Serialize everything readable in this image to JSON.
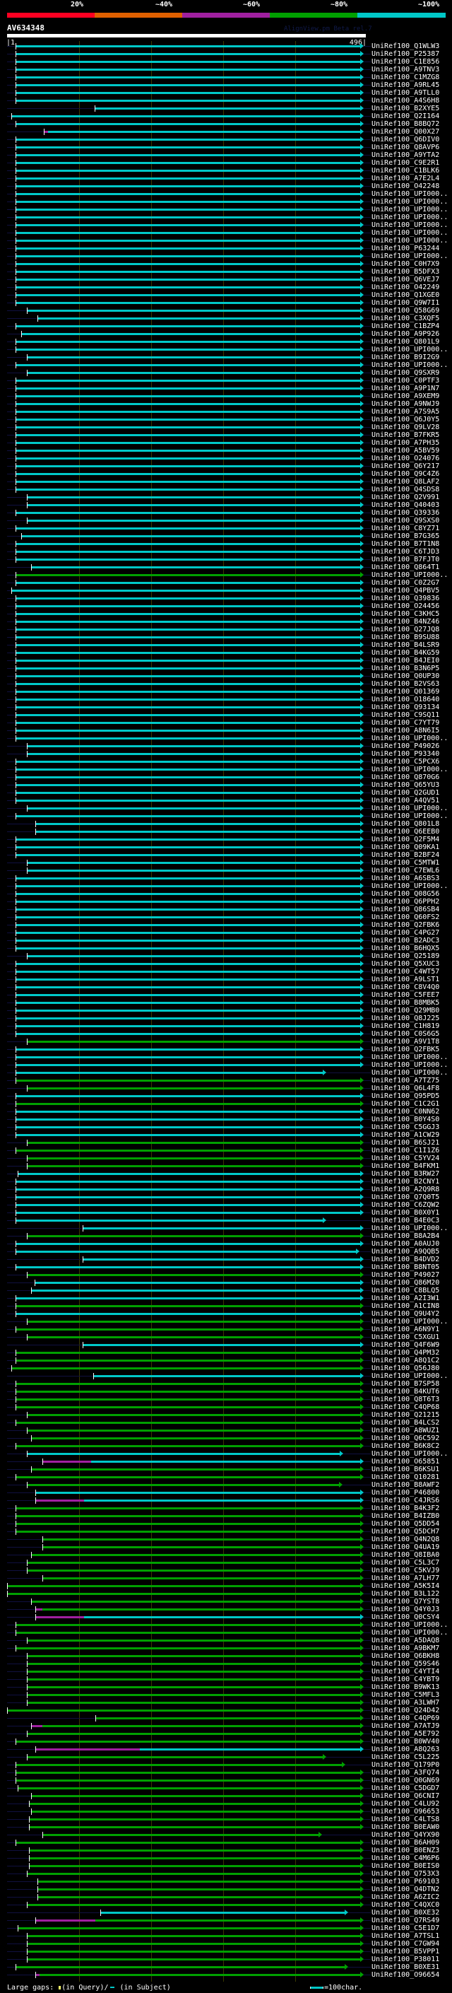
{
  "header": {
    "scale_labels": [
      "20%",
      "~40%",
      "~60%",
      "~80%",
      "~100%"
    ],
    "scale_colors": [
      "#ff0022",
      "#e06000",
      "#a020a0",
      "#00a000",
      "#00c8c8"
    ],
    "query_name": "AV634348",
    "credit": "AlignView.pm Beta rel.7",
    "query_start": "|1",
    "query_end": "496|"
  },
  "colors": {
    "c": "#00c8c8",
    "g": "#00a000",
    "m": "#a020a0",
    "overhang": "#101040"
  },
  "label_prefix": "UniRef100_",
  "query_length": 496,
  "rows": [
    [
      "Q1WLW3",
      "c"
    ],
    [
      "P25387",
      "c"
    ],
    [
      "C1E856",
      "c"
    ],
    [
      "A9TNV3",
      "c"
    ],
    [
      "C1MZG8",
      "c"
    ],
    [
      "A9RL45",
      "c"
    ],
    [
      "A9TLL0",
      "c"
    ],
    [
      "A4S6H8",
      "c"
    ],
    [
      "B2XYE5",
      "c",
      123
    ],
    [
      "Q2I164",
      "c",
      7
    ],
    [
      "B8BQ72",
      "c"
    ],
    [
      "Q00X27",
      "c",
      52,
      491,
      52,
      58
    ],
    [
      "Q6DIV0",
      "c"
    ],
    [
      "Q8AVP6",
      "c"
    ],
    [
      "A9YTA2",
      "c"
    ],
    [
      "C9E2R1",
      "c"
    ],
    [
      "C1BLK6",
      "c"
    ],
    [
      "A7E2L4",
      "c"
    ],
    [
      "O42248",
      "c"
    ],
    [
      "UPI000..",
      "c"
    ],
    [
      "UPI000..",
      "c"
    ],
    [
      "UPI000..",
      "c"
    ],
    [
      "UPI000..",
      "c"
    ],
    [
      "UPI000..",
      "c"
    ],
    [
      "UPI000..",
      "c"
    ],
    [
      "UPI000..",
      "c"
    ],
    [
      "P63244",
      "c"
    ],
    [
      "UPI000..",
      "c"
    ],
    [
      "C0H7X9",
      "c"
    ],
    [
      "B5DFX3",
      "c"
    ],
    [
      "Q6VEJ7",
      "c"
    ],
    [
      "O42249",
      "c"
    ],
    [
      "Q1XGE0",
      "c"
    ],
    [
      "Q9W7I1",
      "c"
    ],
    [
      "Q58G69",
      "c",
      28
    ],
    [
      "C3XQF5",
      "c",
      43
    ],
    [
      "C1BZP4",
      "c"
    ],
    [
      "A9P926",
      "c",
      21
    ],
    [
      "Q801L9",
      "c"
    ],
    [
      "UPI000..",
      "c"
    ],
    [
      "B9I2G9",
      "c",
      28
    ],
    [
      "UPI000..",
      "c"
    ],
    [
      "Q9SXR9",
      "c",
      28
    ],
    [
      "C0PTF3",
      "c"
    ],
    [
      "A9P1N7",
      "c"
    ],
    [
      "A9XEM9",
      "c"
    ],
    [
      "A9NWJ9",
      "c"
    ],
    [
      "A7S9A5",
      "c"
    ],
    [
      "Q6J0Y5",
      "c"
    ],
    [
      "Q9LV28",
      "c"
    ],
    [
      "B7FKR5",
      "c"
    ],
    [
      "A7PH35",
      "c"
    ],
    [
      "A5BV59",
      "c"
    ],
    [
      "O24076",
      "c"
    ],
    [
      "Q6Y217",
      "c"
    ],
    [
      "Q9C4Z6",
      "c"
    ],
    [
      "Q8LAF2",
      "c"
    ],
    [
      "Q4SDS8",
      "c"
    ],
    [
      "Q2V991",
      "c",
      28
    ],
    [
      "Q40403",
      "c",
      28
    ],
    [
      "Q39336",
      "c"
    ],
    [
      "Q9SXS0",
      "c",
      28
    ],
    [
      "C8YZ71",
      "c"
    ],
    [
      "B7G365",
      "c",
      21
    ],
    [
      "B7T1N8",
      "c"
    ],
    [
      "C6TJD3",
      "c"
    ],
    [
      "B7FJT0",
      "c"
    ],
    [
      "Q864T1",
      "c",
      34
    ],
    [
      "UPI000..",
      "g"
    ],
    [
      "C0Z2G7",
      "c"
    ],
    [
      "Q4PBV5",
      "c",
      7
    ],
    [
      "Q39836",
      "c"
    ],
    [
      "O24456",
      "c"
    ],
    [
      "C3KHC5",
      "c"
    ],
    [
      "B4NZ46",
      "c"
    ],
    [
      "Q27JQ8",
      "c"
    ],
    [
      "B9SU88",
      "c"
    ],
    [
      "B4LSR9",
      "c"
    ],
    [
      "B4KG59",
      "c"
    ],
    [
      "B4JEI0",
      "c"
    ],
    [
      "B3N6P5",
      "c"
    ],
    [
      "Q0UP30",
      "c"
    ],
    [
      "B2VS63",
      "c"
    ],
    [
      "Q01369",
      "c"
    ],
    [
      "O18640",
      "c"
    ],
    [
      "Q93134",
      "c"
    ],
    [
      "C9SQ11",
      "c"
    ],
    [
      "C7YT79",
      "c"
    ],
    [
      "A8N6I5",
      "c"
    ],
    [
      "UPI000..",
      "c"
    ],
    [
      "P49026",
      "c",
      28
    ],
    [
      "P93340",
      "c",
      28
    ],
    [
      "C5PCX6",
      "c"
    ],
    [
      "UPI000..",
      "c"
    ],
    [
      "Q870G6",
      "c"
    ],
    [
      "Q65YU3",
      "c"
    ],
    [
      "Q2GUD1",
      "c"
    ],
    [
      "A4QV51",
      "c"
    ],
    [
      "UPI000..",
      "c",
      28
    ],
    [
      "UPI000..",
      "c"
    ],
    [
      "Q801L8",
      "c",
      40
    ],
    [
      "Q6EEB0",
      "c",
      40
    ],
    [
      "Q2F5M4",
      "c"
    ],
    [
      "Q09KA1",
      "c"
    ],
    [
      "B2BF24",
      "c"
    ],
    [
      "C5MTW1",
      "c",
      28
    ],
    [
      "C7EWL6",
      "c",
      28
    ],
    [
      "A6SBS3",
      "c"
    ],
    [
      "UPI000..",
      "c"
    ],
    [
      "Q08G56",
      "c"
    ],
    [
      "Q6PPH2",
      "c"
    ],
    [
      "Q86SB4",
      "c"
    ],
    [
      "Q60FS2",
      "c"
    ],
    [
      "Q2FBK6",
      "c"
    ],
    [
      "C4PG27",
      "c"
    ],
    [
      "B2ADC3",
      "c"
    ],
    [
      "B6HQX5",
      "c"
    ],
    [
      "Q25189",
      "c",
      28
    ],
    [
      "Q5XUC3",
      "c"
    ],
    [
      "C4WT57",
      "c"
    ],
    [
      "A9LST1",
      "c"
    ],
    [
      "C8V4Q0",
      "c"
    ],
    [
      "C5FEE7",
      "c"
    ],
    [
      "B8MBK5",
      "c"
    ],
    [
      "Q29MB0",
      "c"
    ],
    [
      "Q8J225",
      "c"
    ],
    [
      "C1H819",
      "c"
    ],
    [
      "C0S6G5",
      "c"
    ],
    [
      "A9V1T8",
      "g",
      28
    ],
    [
      "Q2FBK5",
      "c"
    ],
    [
      "UPI000..",
      "c"
    ],
    [
      "UPI000..",
      "c"
    ],
    [
      "UPI000..",
      "c",
      13,
      439
    ],
    [
      "A7TZ75",
      "g"
    ],
    [
      "Q6L4F8",
      "g",
      28
    ],
    [
      "Q95PD5",
      "c"
    ],
    [
      "C1C2G1",
      "g"
    ],
    [
      "C0NN62",
      "c"
    ],
    [
      "B0Y4S0",
      "c"
    ],
    [
      "C5GGJ3",
      "c"
    ],
    [
      "A1CW29",
      "c"
    ],
    [
      "B6SJ21",
      "g",
      28
    ],
    [
      "C1I1Z6",
      "g"
    ],
    [
      "C5YV24",
      "g",
      28
    ],
    [
      "B4FKM1",
      "g",
      28
    ],
    [
      "B3RW27",
      "c",
      16
    ],
    [
      "B2CNY1",
      "c"
    ],
    [
      "A2Q9R8",
      "c"
    ],
    [
      "Q7Q0T5",
      "c"
    ],
    [
      "C6ZQW2",
      "c"
    ],
    [
      "B0X0Y1",
      "c"
    ],
    [
      "B4E0C3",
      "c",
      13,
      439
    ],
    [
      "UPI000..",
      "c",
      106
    ],
    [
      "B8A2B4",
      "g",
      28
    ],
    [
      "A0AUJ0",
      "c"
    ],
    [
      "A9QQB5",
      "c",
      13,
      485
    ],
    [
      "B4DVD2",
      "c",
      106
    ],
    [
      "B8NT05",
      "c"
    ],
    [
      "P49027",
      "g",
      28
    ],
    [
      "Q86M20",
      "c",
      39
    ],
    [
      "C8BLQ5",
      "c",
      34
    ],
    [
      "A2I3W1",
      "c"
    ],
    [
      "A1CIN8",
      "g"
    ],
    [
      "Q9U4Y2",
      "c"
    ],
    [
      "UPI000..",
      "g",
      28
    ],
    [
      "A6N9Y1",
      "g"
    ],
    [
      "C5XGU1",
      "g",
      28
    ],
    [
      "Q4F6W9",
      "c",
      106
    ],
    [
      "Q4PM32",
      "g"
    ],
    [
      "A8Q1C2",
      "g"
    ],
    [
      "Q56J80",
      "g",
      7
    ],
    [
      "UPI000..",
      "c",
      121
    ],
    [
      "B7SP58",
      "g"
    ],
    [
      "B4KUT6",
      "g"
    ],
    [
      "Q8T6T3",
      "g"
    ],
    [
      "C4QP68",
      "g"
    ],
    [
      "Q21215",
      "g",
      28
    ],
    [
      "B4LCS2",
      "g"
    ],
    [
      "A8WUZ1",
      "g",
      28
    ],
    [
      "Q6C592",
      "g",
      34
    ],
    [
      "B6K8C2",
      "g"
    ],
    [
      "UPI000..",
      "c",
      28,
      463
    ],
    [
      "O65851",
      "c",
      50,
      491,
      50,
      118
    ],
    [
      "B6KSU1",
      "g",
      34
    ],
    [
      "Q10281",
      "g"
    ],
    [
      "B8AWF2",
      "g",
      28,
      462
    ],
    [
      "P46800",
      "c",
      40
    ],
    [
      "C4JRS6",
      "c",
      40,
      491,
      40,
      108
    ],
    [
      "B4K3F2",
      "g"
    ],
    [
      "B4IZB0",
      "g"
    ],
    [
      "Q5DD54",
      "g"
    ],
    [
      "Q5DCH7",
      "g"
    ],
    [
      "Q4N2Q8",
      "g",
      50
    ],
    [
      "Q4UA19",
      "g",
      50
    ],
    [
      "Q8IBA0",
      "g",
      34
    ],
    [
      "C5L3C7",
      "g",
      28
    ],
    [
      "C5KVJ9",
      "g",
      28
    ],
    [
      "A7LH77",
      "g",
      50
    ],
    [
      "A5K5I4",
      "g",
      1
    ],
    [
      "B3L122",
      "g",
      1
    ],
    [
      "Q7YST8",
      "g",
      34
    ],
    [
      "Q4Y0J3",
      "g",
      40,
      491,
      40,
      50
    ],
    [
      "Q0CSY4",
      "c",
      40,
      491,
      40,
      108
    ],
    [
      "UPI000..",
      "g"
    ],
    [
      "UPI000..",
      "g"
    ],
    [
      "A5DAQ8",
      "g",
      28
    ],
    [
      "A9BKM7",
      "g"
    ],
    [
      "Q6BKH8",
      "g",
      28
    ],
    [
      "Q59S46",
      "g",
      28
    ],
    [
      "C4YTI4",
      "g",
      28
    ],
    [
      "C4YBT9",
      "g",
      28
    ],
    [
      "B9WK13",
      "g",
      28
    ],
    [
      "C5MFL3",
      "g",
      28
    ],
    [
      "A3LWH7",
      "g",
      28
    ],
    [
      "Q24D42",
      "g",
      1
    ],
    [
      "C4QP69",
      "g",
      124
    ],
    [
      "A7ATJ9",
      "g",
      34,
      491,
      34,
      50
    ],
    [
      "A5E792",
      "g",
      28
    ],
    [
      "B0WV40",
      "g"
    ],
    [
      "A8Q263",
      "c",
      40,
      491,
      40,
      185
    ],
    [
      "C5L225",
      "g",
      28,
      439
    ],
    [
      "Q179P0",
      "g",
      13,
      466
    ],
    [
      "A3FQ74",
      "g"
    ],
    [
      "Q0GN69",
      "g"
    ],
    [
      "C5DGD7",
      "g",
      16
    ],
    [
      "Q6CNI7",
      "g",
      34
    ],
    [
      "C4LU92",
      "g",
      31
    ],
    [
      "O96653",
      "g",
      34
    ],
    [
      "C4LTS8",
      "g",
      31
    ],
    [
      "B0EAW0",
      "g",
      31
    ],
    [
      "Q4YX90",
      "g",
      50,
      433
    ],
    [
      "B6AH09",
      "g"
    ],
    [
      "B0ENZ3",
      "g",
      31
    ],
    [
      "C4M6P6",
      "g",
      31
    ],
    [
      "B0EIS0",
      "g",
      31
    ],
    [
      "Q753X3",
      "g",
      28
    ],
    [
      "P69103",
      "g",
      43
    ],
    [
      "Q4DTN2",
      "g",
      43
    ],
    [
      "A6ZIC2",
      "g",
      43
    ],
    [
      "C4QXC0",
      "g",
      28
    ],
    [
      "B0XE32",
      "c",
      130,
      470
    ],
    [
      "Q7RS49",
      "g",
      40,
      491,
      40,
      124
    ],
    [
      "C5E1D7",
      "g",
      16
    ],
    [
      "A7TSL1",
      "g",
      28
    ],
    [
      "C7GW94",
      "g",
      28
    ],
    [
      "B5VPP1",
      "g",
      28
    ],
    [
      "P38011",
      "g",
      28
    ],
    [
      "B0XE31",
      "g",
      13,
      470
    ],
    [
      "O96654",
      "g",
      46,
      491,
      40,
      46
    ]
  ],
  "footer": {
    "gaps_label": "Large gaps:",
    "query_gap_text": "(in Query)/",
    "subject_gap_text": " (in Subject)",
    "scale_legend": "=100char."
  }
}
